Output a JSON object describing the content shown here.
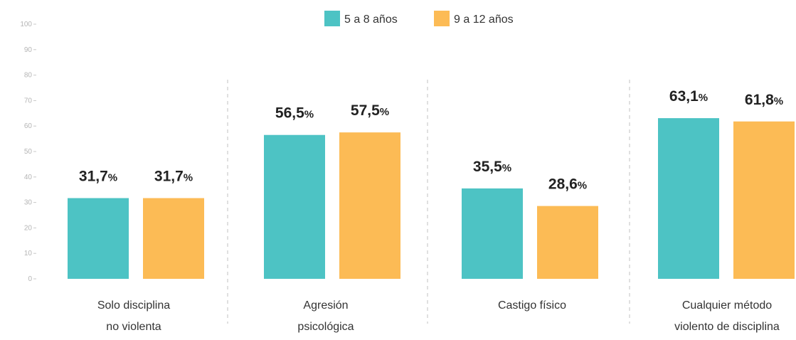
{
  "chart_data": {
    "type": "bar",
    "categories": [
      [
        "Solo disciplina",
        "no violenta"
      ],
      [
        "Agresión",
        "psicológica"
      ],
      [
        "Castigo físico"
      ],
      [
        "Cualquier método",
        "violento de disciplina"
      ]
    ],
    "series": [
      {
        "name": "5 a 8 años",
        "color": "#4dc3c4",
        "values": [
          31.7,
          56.5,
          35.5,
          63.1
        ]
      },
      {
        "name": "9 a 12 años",
        "color": "#fcbb55",
        "values": [
          31.7,
          57.5,
          28.6,
          61.8
        ]
      }
    ],
    "value_labels": [
      [
        "31,7",
        "56,5",
        "35,5",
        "63,1"
      ],
      [
        "31,7",
        "57,5",
        "28,6",
        "61,8"
      ]
    ],
    "value_suffix": "%",
    "ylim": [
      0,
      100
    ],
    "yticks": [
      "0",
      "10",
      "20",
      "30",
      "40",
      "50",
      "60",
      "70",
      "80",
      "90",
      "100"
    ],
    "legend_position": "top-center",
    "grid": false,
    "separators": "dashed-vertical"
  }
}
